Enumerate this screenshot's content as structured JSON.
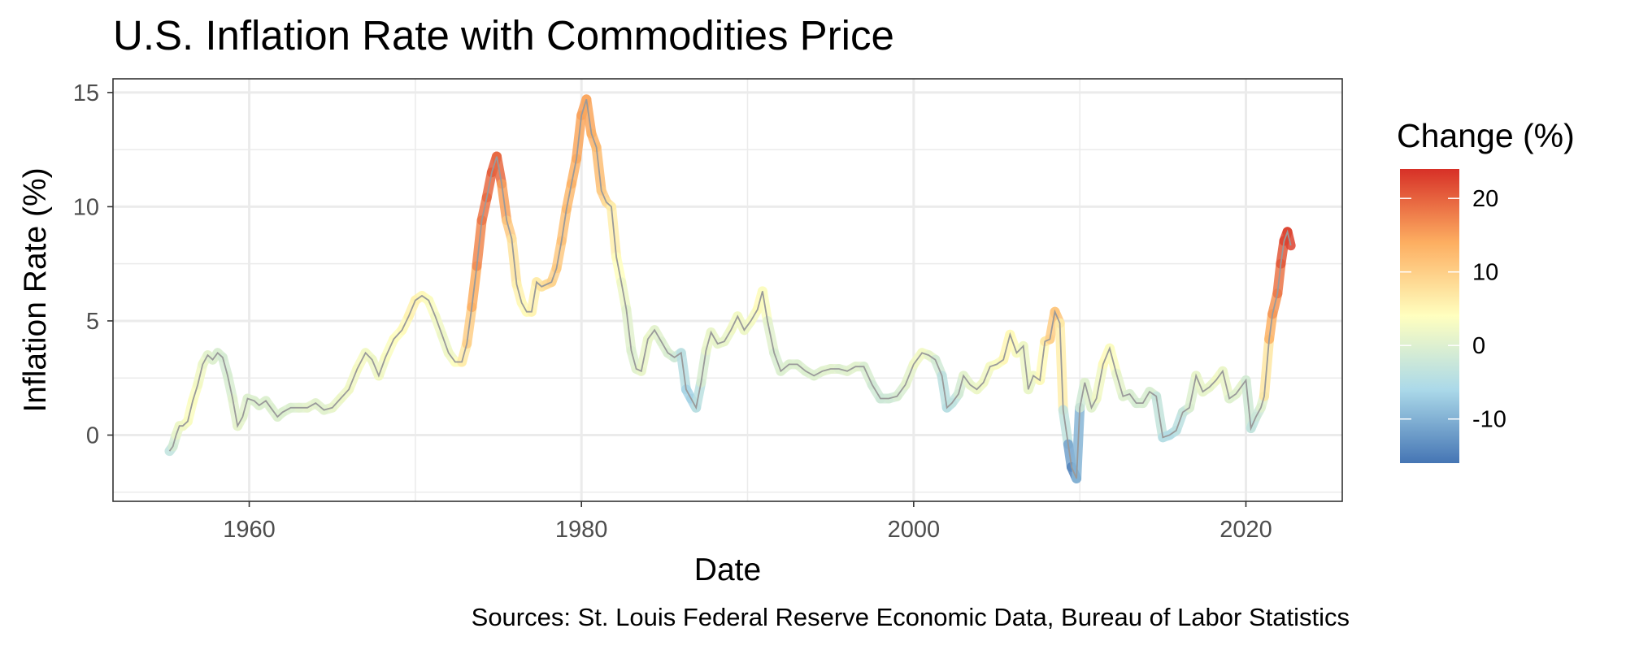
{
  "chart_data": {
    "type": "line",
    "title": "U.S. Inflation Rate with Commodities Price",
    "xlabel": "Date",
    "ylabel": "Inflation Rate (%)",
    "caption": "Sources: St. Louis Federal Reserve Economic Data, Bureau of Labor Statistics",
    "xlim": [
      1951.8,
      2025.8
    ],
    "ylim": [
      -2.9,
      15.6
    ],
    "x_ticks": [
      1960,
      1980,
      2000,
      2020
    ],
    "y_ticks": [
      0,
      5,
      10,
      15
    ],
    "grid": true,
    "legend": {
      "title": "Change (%)",
      "position": "right",
      "type": "colorbar",
      "range": [
        -16,
        24
      ],
      "ticks": [
        20,
        10,
        0,
        -10
      ],
      "colors": [
        "#4575b4",
        "#abd9e9",
        "#ffffbf",
        "#fdae61",
        "#d73027"
      ]
    },
    "series": [
      {
        "points": [
          [
            1955.2,
            -0.7,
            -4
          ],
          [
            1955.4,
            -0.5,
            -3
          ],
          [
            1955.6,
            0.0,
            1
          ],
          [
            1955.8,
            0.4,
            2
          ],
          [
            1956.0,
            0.4,
            2
          ],
          [
            1956.3,
            0.6,
            3
          ],
          [
            1956.6,
            1.5,
            4
          ],
          [
            1956.9,
            2.2,
            3
          ],
          [
            1957.2,
            3.1,
            2
          ],
          [
            1957.5,
            3.5,
            1
          ],
          [
            1957.8,
            3.3,
            0
          ],
          [
            1958.1,
            3.6,
            0
          ],
          [
            1958.4,
            3.4,
            -1
          ],
          [
            1958.7,
            2.6,
            -1
          ],
          [
            1959.0,
            1.6,
            0
          ],
          [
            1959.3,
            0.4,
            1
          ],
          [
            1959.6,
            0.8,
            1
          ],
          [
            1959.9,
            1.6,
            0
          ],
          [
            1960.3,
            1.5,
            0
          ],
          [
            1960.6,
            1.3,
            0
          ],
          [
            1961.0,
            1.5,
            0
          ],
          [
            1961.3,
            1.2,
            0
          ],
          [
            1961.7,
            0.8,
            0
          ],
          [
            1962.0,
            1.0,
            0
          ],
          [
            1962.5,
            1.2,
            0
          ],
          [
            1963.0,
            1.2,
            0
          ],
          [
            1963.5,
            1.2,
            1
          ],
          [
            1964.0,
            1.4,
            1
          ],
          [
            1964.5,
            1.1,
            0
          ],
          [
            1965.0,
            1.2,
            1
          ],
          [
            1965.5,
            1.6,
            2
          ],
          [
            1966.0,
            2.0,
            2
          ],
          [
            1966.5,
            2.9,
            3
          ],
          [
            1967.0,
            3.6,
            3
          ],
          [
            1967.4,
            3.3,
            2
          ],
          [
            1967.8,
            2.6,
            2
          ],
          [
            1968.2,
            3.4,
            3
          ],
          [
            1968.7,
            4.2,
            4
          ],
          [
            1969.2,
            4.6,
            4
          ],
          [
            1969.6,
            5.2,
            5
          ],
          [
            1970.0,
            5.9,
            6
          ],
          [
            1970.4,
            6.1,
            5
          ],
          [
            1970.8,
            5.9,
            4
          ],
          [
            1971.2,
            5.2,
            3
          ],
          [
            1971.6,
            4.4,
            2
          ],
          [
            1972.0,
            3.6,
            2
          ],
          [
            1972.4,
            3.2,
            3
          ],
          [
            1972.8,
            3.2,
            5
          ],
          [
            1973.1,
            4.0,
            8
          ],
          [
            1973.4,
            5.6,
            12
          ],
          [
            1973.7,
            7.4,
            16
          ],
          [
            1974.0,
            9.4,
            18
          ],
          [
            1974.3,
            10.4,
            19
          ],
          [
            1974.6,
            11.5,
            20
          ],
          [
            1974.9,
            12.2,
            21
          ],
          [
            1975.2,
            11.0,
            18
          ],
          [
            1975.5,
            9.4,
            12
          ],
          [
            1975.8,
            8.6,
            9
          ],
          [
            1976.1,
            6.6,
            6
          ],
          [
            1976.4,
            5.8,
            5
          ],
          [
            1976.7,
            5.4,
            4
          ],
          [
            1977.0,
            5.4,
            5
          ],
          [
            1977.3,
            6.7,
            6
          ],
          [
            1977.6,
            6.5,
            7
          ],
          [
            1977.9,
            6.6,
            8
          ],
          [
            1978.2,
            6.7,
            9
          ],
          [
            1978.5,
            7.3,
            10
          ],
          [
            1978.8,
            8.5,
            11
          ],
          [
            1979.1,
            9.9,
            12
          ],
          [
            1979.4,
            11.0,
            13
          ],
          [
            1979.7,
            12.1,
            14
          ],
          [
            1980.0,
            14.0,
            15
          ],
          [
            1980.3,
            14.7,
            15
          ],
          [
            1980.6,
            13.2,
            14
          ],
          [
            1980.9,
            12.6,
            13
          ],
          [
            1981.2,
            10.7,
            11
          ],
          [
            1981.5,
            10.2,
            9
          ],
          [
            1981.8,
            10.0,
            7
          ],
          [
            1982.1,
            7.8,
            5
          ],
          [
            1982.4,
            6.7,
            3
          ],
          [
            1982.7,
            5.5,
            1
          ],
          [
            1983.0,
            3.7,
            0
          ],
          [
            1983.3,
            2.9,
            0
          ],
          [
            1983.6,
            2.8,
            1
          ],
          [
            1984.0,
            4.2,
            2
          ],
          [
            1984.4,
            4.6,
            1
          ],
          [
            1984.8,
            4.1,
            0
          ],
          [
            1985.2,
            3.6,
            0
          ],
          [
            1985.6,
            3.4,
            -1
          ],
          [
            1986.0,
            3.6,
            -3
          ],
          [
            1986.3,
            2.0,
            -6
          ],
          [
            1986.6,
            1.6,
            -7
          ],
          [
            1986.9,
            1.2,
            -6
          ],
          [
            1987.2,
            2.3,
            -2
          ],
          [
            1987.5,
            3.7,
            1
          ],
          [
            1987.8,
            4.5,
            2
          ],
          [
            1988.2,
            4.0,
            1
          ],
          [
            1988.6,
            4.1,
            1
          ],
          [
            1989.0,
            4.6,
            2
          ],
          [
            1989.4,
            5.2,
            3
          ],
          [
            1989.8,
            4.6,
            2
          ],
          [
            1990.2,
            5.0,
            2
          ],
          [
            1990.6,
            5.5,
            4
          ],
          [
            1990.9,
            6.3,
            5
          ],
          [
            1991.2,
            5.0,
            2
          ],
          [
            1991.6,
            3.6,
            -1
          ],
          [
            1992.0,
            2.8,
            0
          ],
          [
            1992.5,
            3.1,
            0
          ],
          [
            1993.0,
            3.1,
            0
          ],
          [
            1993.5,
            2.8,
            0
          ],
          [
            1994.0,
            2.6,
            0
          ],
          [
            1994.5,
            2.8,
            0
          ],
          [
            1995.0,
            2.9,
            1
          ],
          [
            1995.5,
            2.9,
            0
          ],
          [
            1996.0,
            2.8,
            0
          ],
          [
            1996.5,
            3.0,
            1
          ],
          [
            1997.0,
            3.0,
            0
          ],
          [
            1997.5,
            2.2,
            -1
          ],
          [
            1998.0,
            1.6,
            -2
          ],
          [
            1998.5,
            1.6,
            -2
          ],
          [
            1999.0,
            1.7,
            -1
          ],
          [
            1999.5,
            2.2,
            0
          ],
          [
            2000.0,
            3.1,
            2
          ],
          [
            2000.5,
            3.6,
            3
          ],
          [
            2000.9,
            3.5,
            2
          ],
          [
            2001.3,
            3.3,
            0
          ],
          [
            2001.7,
            2.6,
            -3
          ],
          [
            2002.0,
            1.2,
            -5
          ],
          [
            2002.3,
            1.4,
            -4
          ],
          [
            2002.7,
            1.8,
            -3
          ],
          [
            2003.0,
            2.6,
            1
          ],
          [
            2003.4,
            2.2,
            1
          ],
          [
            2003.8,
            2.0,
            2
          ],
          [
            2004.2,
            2.3,
            2
          ],
          [
            2004.6,
            3.0,
            3
          ],
          [
            2005.0,
            3.1,
            3
          ],
          [
            2005.4,
            3.3,
            4
          ],
          [
            2005.8,
            4.4,
            6
          ],
          [
            2006.2,
            3.6,
            3
          ],
          [
            2006.6,
            3.9,
            3
          ],
          [
            2006.9,
            2.0,
            1
          ],
          [
            2007.2,
            2.6,
            2
          ],
          [
            2007.6,
            2.4,
            3
          ],
          [
            2007.9,
            4.1,
            6
          ],
          [
            2008.2,
            4.2,
            8
          ],
          [
            2008.5,
            5.4,
            12
          ],
          [
            2008.8,
            4.9,
            10
          ],
          [
            2009.0,
            1.1,
            2
          ],
          [
            2009.3,
            -0.4,
            -9
          ],
          [
            2009.5,
            -1.4,
            -14
          ],
          [
            2009.8,
            -1.9,
            -15
          ],
          [
            2010.0,
            1.2,
            -4
          ],
          [
            2010.3,
            2.3,
            1
          ],
          [
            2010.7,
            1.2,
            0
          ],
          [
            2011.0,
            1.6,
            1
          ],
          [
            2011.4,
            3.1,
            4
          ],
          [
            2011.8,
            3.8,
            5
          ],
          [
            2012.2,
            2.7,
            2
          ],
          [
            2012.6,
            1.7,
            0
          ],
          [
            2013.0,
            1.8,
            0
          ],
          [
            2013.4,
            1.4,
            -1
          ],
          [
            2013.8,
            1.4,
            -1
          ],
          [
            2014.2,
            1.9,
            0
          ],
          [
            2014.6,
            1.7,
            -1
          ],
          [
            2015.0,
            -0.1,
            -5
          ],
          [
            2015.4,
            0.0,
            -5
          ],
          [
            2015.8,
            0.2,
            -5
          ],
          [
            2016.2,
            1.0,
            -3
          ],
          [
            2016.6,
            1.2,
            -2
          ],
          [
            2017.0,
            2.6,
            2
          ],
          [
            2017.4,
            1.9,
            1
          ],
          [
            2017.8,
            2.1,
            1
          ],
          [
            2018.2,
            2.4,
            2
          ],
          [
            2018.6,
            2.8,
            3
          ],
          [
            2019.0,
            1.6,
            0
          ],
          [
            2019.4,
            1.8,
            0
          ],
          [
            2019.8,
            2.2,
            1
          ],
          [
            2020.0,
            2.4,
            1
          ],
          [
            2020.3,
            0.3,
            -4
          ],
          [
            2020.6,
            0.8,
            -3
          ],
          [
            2020.9,
            1.2,
            -1
          ],
          [
            2021.1,
            1.7,
            2
          ],
          [
            2021.4,
            4.2,
            12
          ],
          [
            2021.6,
            5.3,
            15
          ],
          [
            2021.9,
            6.2,
            17
          ],
          [
            2022.1,
            7.5,
            20
          ],
          [
            2022.3,
            8.5,
            22
          ],
          [
            2022.5,
            8.9,
            23
          ],
          [
            2022.7,
            8.3,
            22
          ]
        ]
      }
    ]
  }
}
